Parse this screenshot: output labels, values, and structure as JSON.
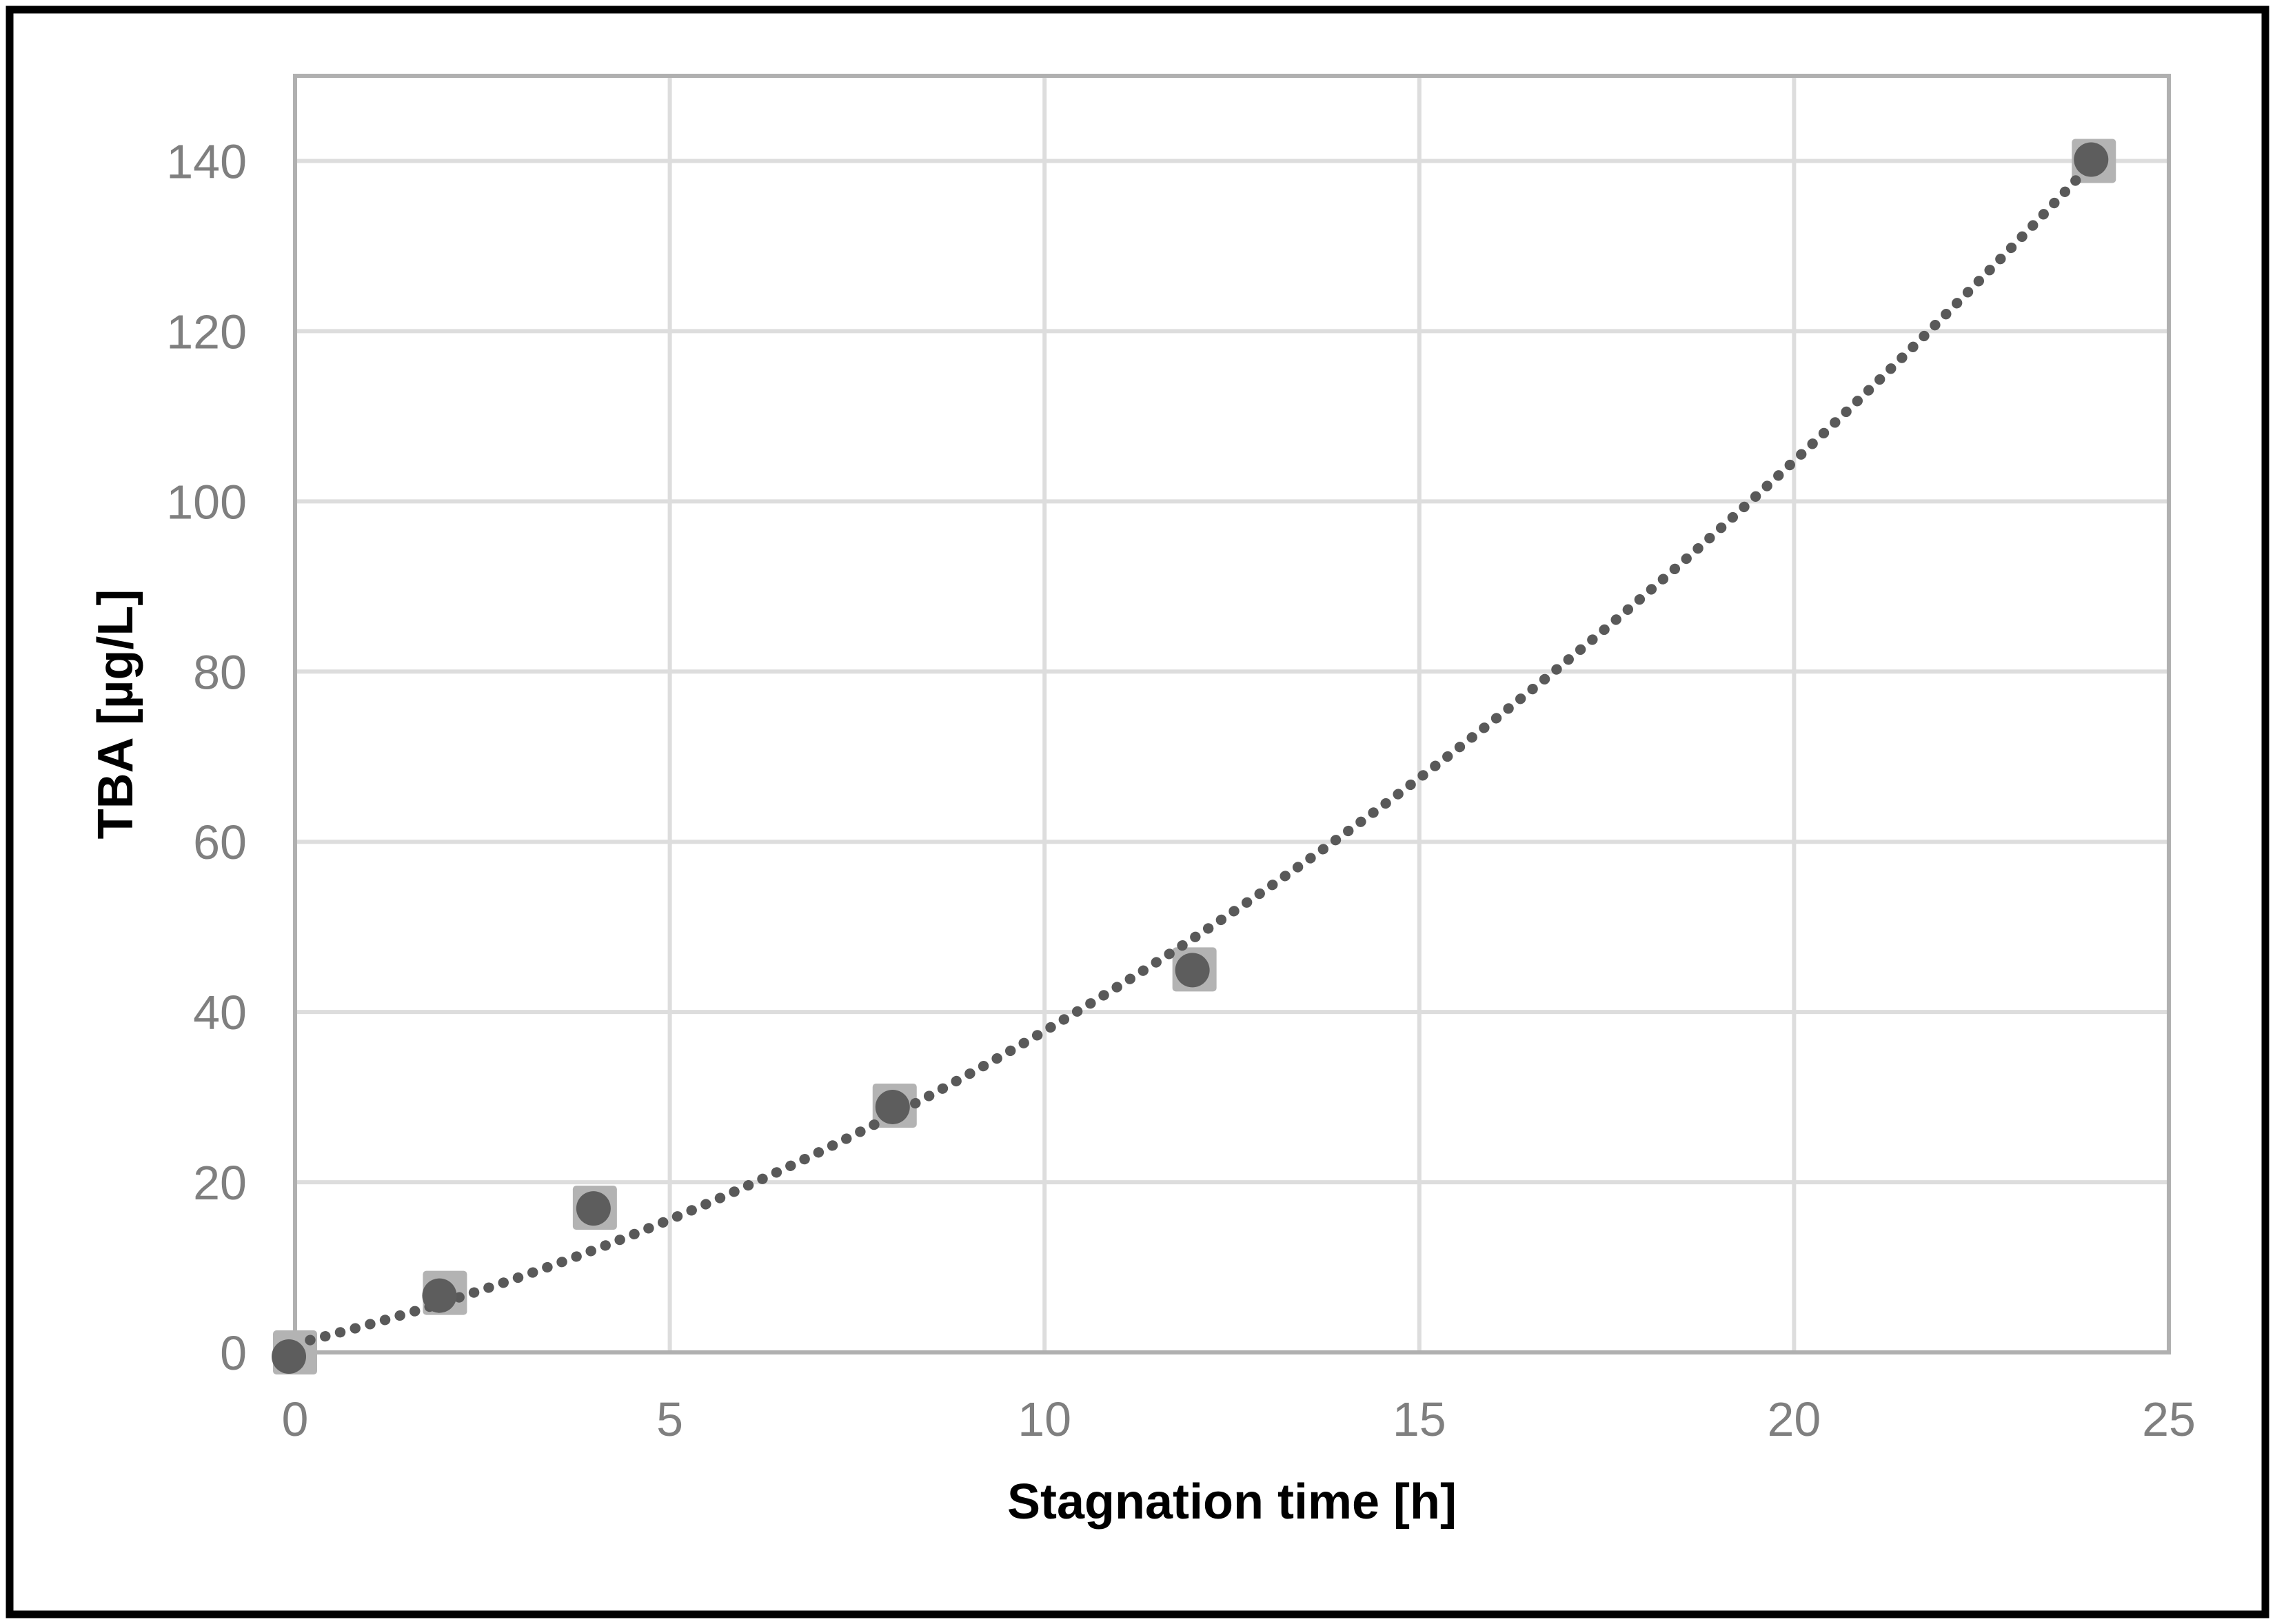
{
  "figure": {
    "background_color": "#ffffff",
    "frame_color": "#000000"
  },
  "chart_data": {
    "type": "scatter",
    "title": "",
    "xlabel": "Stagnation time [h]",
    "ylabel": "TBA [µg/L]",
    "x": [
      0,
      2,
      4,
      8,
      12,
      24
    ],
    "y": [
      0,
      7,
      17,
      29,
      45,
      140
    ],
    "xlim": [
      0,
      25
    ],
    "ylim": [
      0,
      150
    ],
    "x_ticks": [
      0,
      5,
      10,
      15,
      20,
      25
    ],
    "y_ticks": [
      0,
      20,
      40,
      60,
      80,
      100,
      120,
      140
    ],
    "grid": true,
    "legend": "none",
    "marker": {
      "shape": "circle-on-square",
      "square_size": 64,
      "circle_radius": 25
    },
    "trendline": {
      "style": "dotted",
      "type": "polynomial-order-2",
      "coefficients": {
        "a": 0.151,
        "b": 2.167,
        "c": 1.0
      },
      "x_range": [
        0.2,
        24
      ]
    },
    "colors": {
      "marker_square": "#b3b3b3",
      "marker_circle": "#5d5d5d",
      "trendline": "#595959",
      "gridline": "#dddddd",
      "plot_border": "#b0b0b0",
      "tick_label": "#7f7f7f",
      "axis_title": "#000000"
    }
  }
}
